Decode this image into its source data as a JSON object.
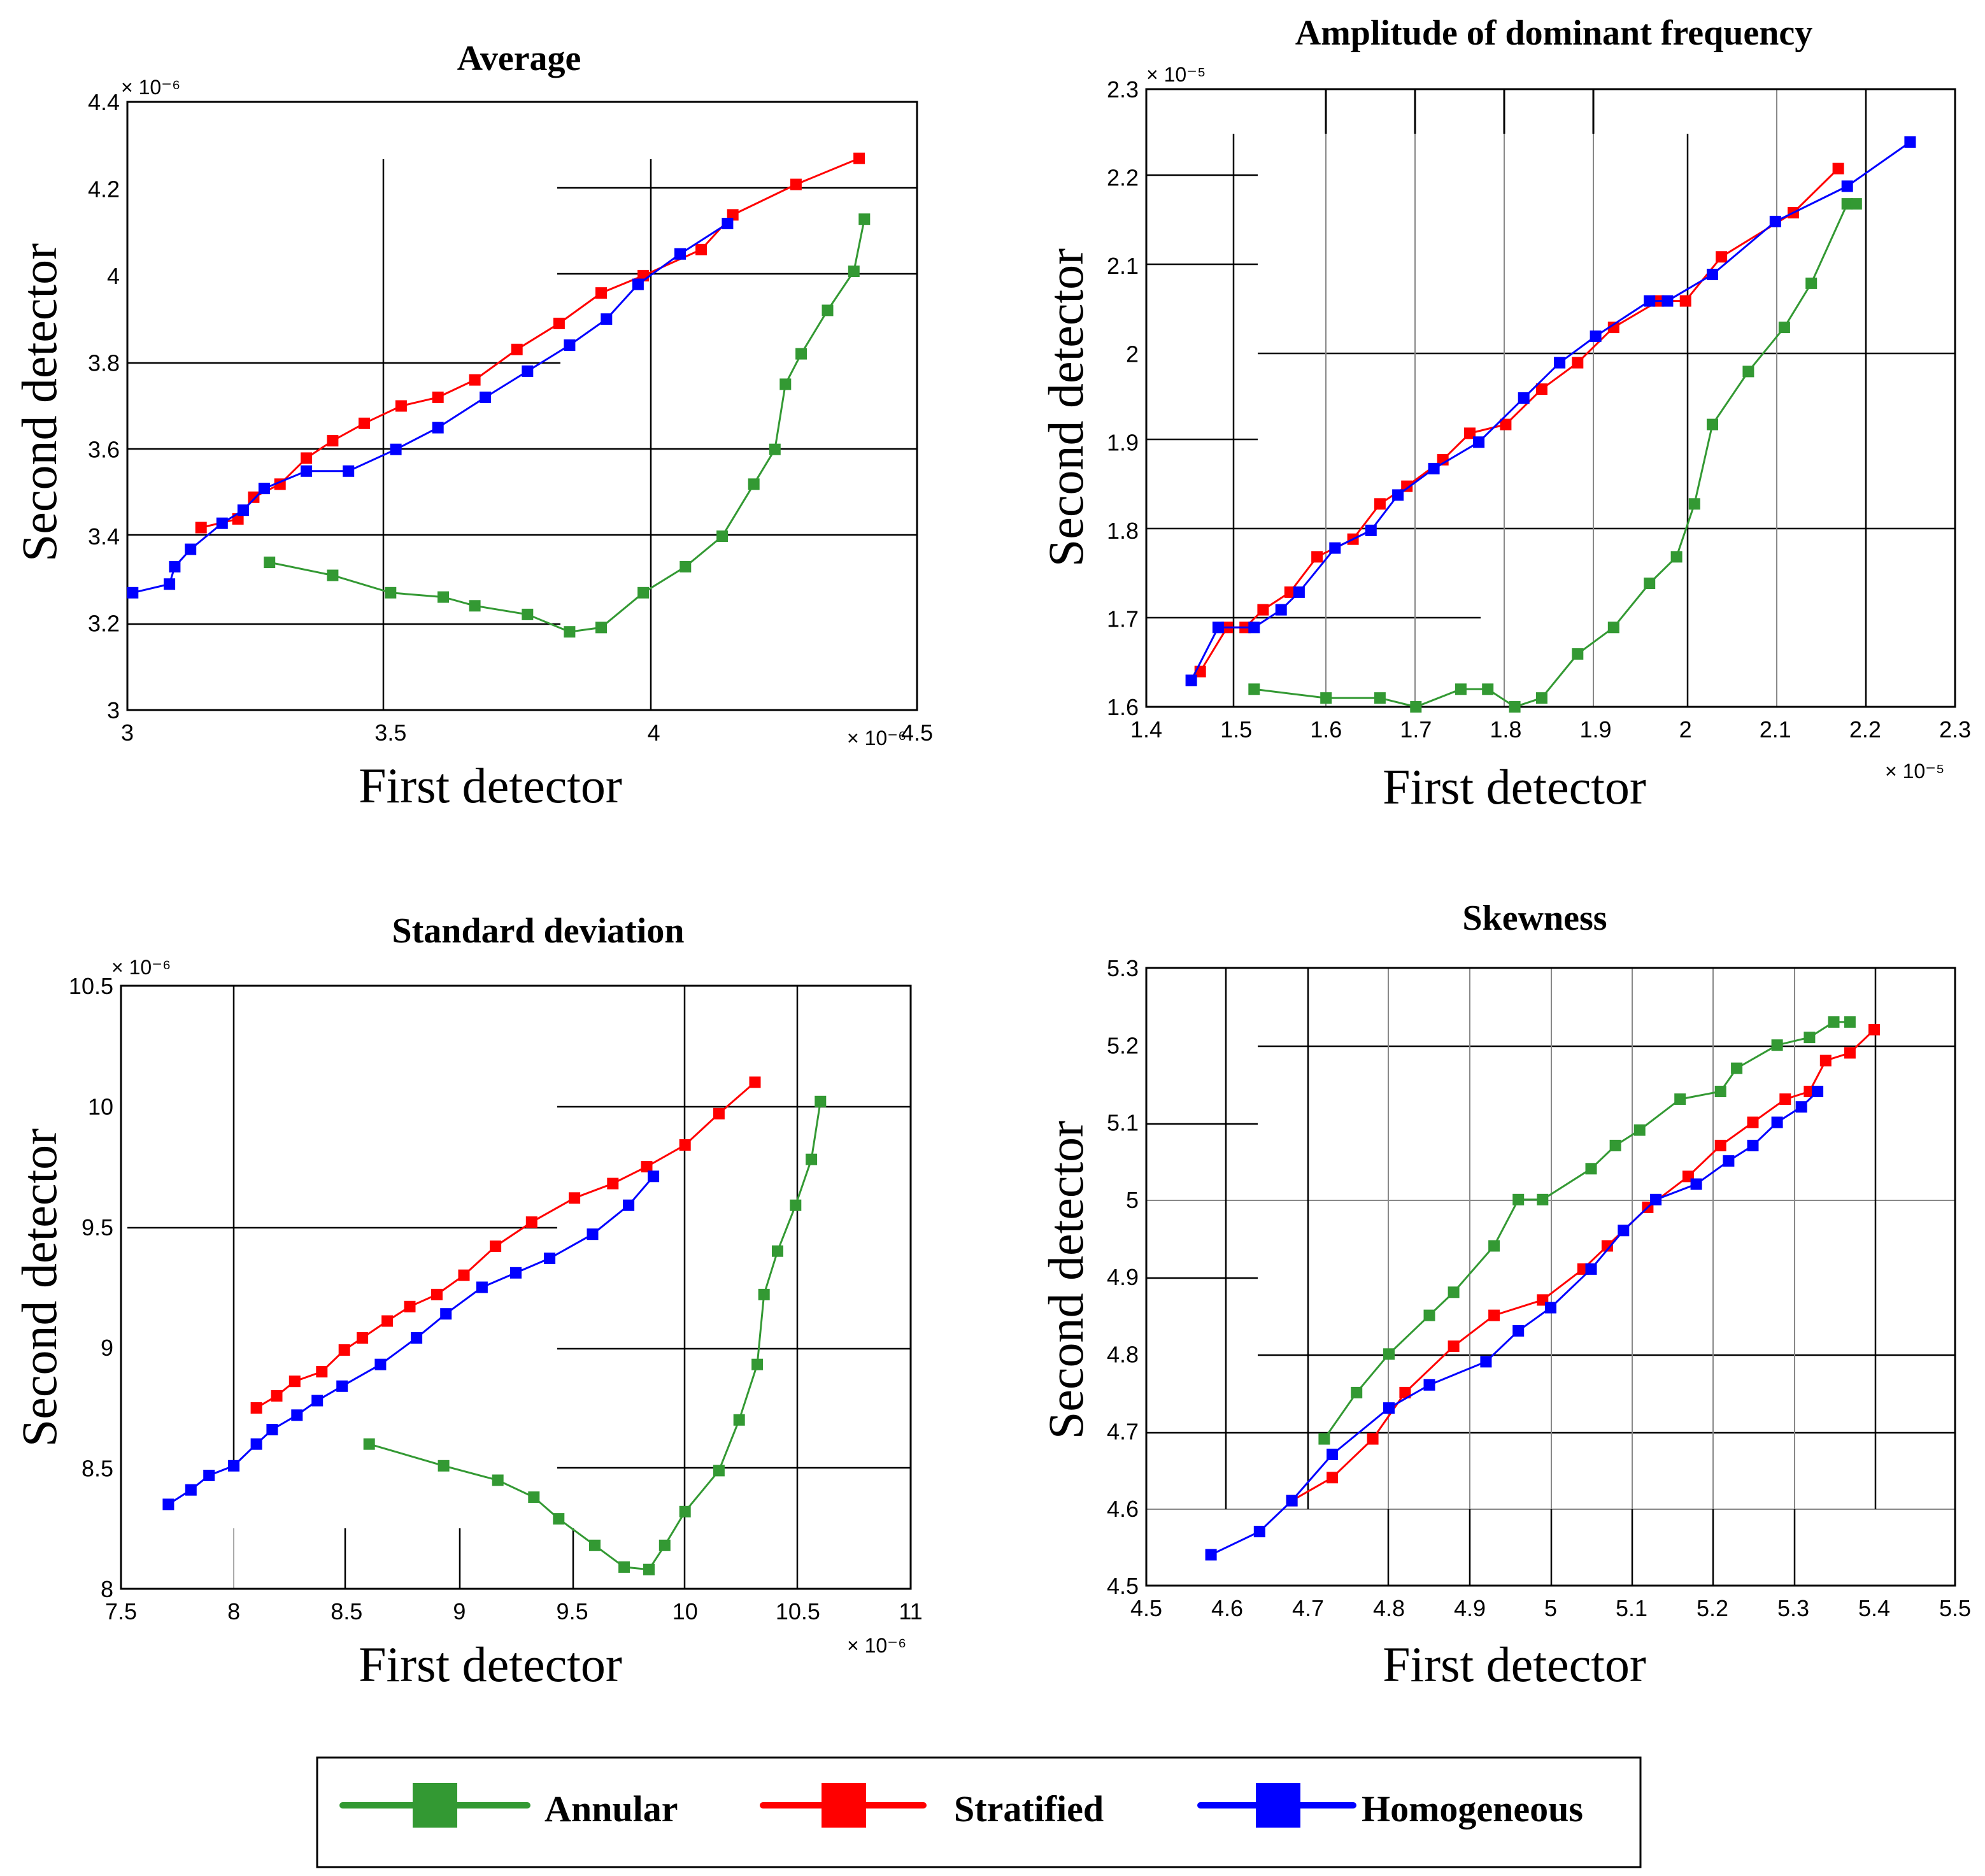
{
  "colors": {
    "Annular": "#339933",
    "Stratified": "#ff0000",
    "Homogeneous": "#0000ff"
  },
  "legend": {
    "items": [
      {
        "name": "Annular",
        "color": "#339933"
      },
      {
        "name": "Stratified",
        "color": "#ff0000"
      },
      {
        "name": "Homogeneous",
        "color": "#0000ff"
      }
    ]
  },
  "chart_data": [
    {
      "type": "line",
      "title": "Average",
      "xlabel": "First detector",
      "ylabel": "Second detector",
      "xlim": [
        3,
        4.5
      ],
      "ylim": [
        3,
        4.4
      ],
      "xticks": [
        "3",
        "3.5",
        "4",
        "4.5"
      ],
      "yticks": [
        "3",
        "3.2",
        "3.4",
        "3.6",
        "3.8",
        "4",
        "4.2",
        "4.4"
      ],
      "xexponent": "× 10⁻⁶",
      "yexponent": "× 10⁻⁶",
      "series": [
        {
          "name": "Annular",
          "x": [
            3.27,
            3.39,
            3.5,
            3.6,
            3.66,
            3.76,
            3.84,
            3.9,
            3.98,
            4.06,
            4.13,
            4.19,
            4.23,
            4.25,
            4.28,
            4.33,
            4.38,
            4.4
          ],
          "y": [
            3.34,
            3.31,
            3.27,
            3.26,
            3.24,
            3.22,
            3.18,
            3.19,
            3.27,
            3.33,
            3.4,
            3.52,
            3.6,
            3.75,
            3.82,
            3.92,
            4.01,
            4.13
          ]
        },
        {
          "name": "Stratified",
          "x": [
            3.14,
            3.21,
            3.24,
            3.29,
            3.34,
            3.39,
            3.45,
            3.52,
            3.59,
            3.66,
            3.74,
            3.82,
            3.9,
            3.98,
            4.09,
            4.15,
            4.27,
            4.39
          ],
          "y": [
            3.42,
            3.44,
            3.49,
            3.52,
            3.58,
            3.62,
            3.66,
            3.7,
            3.72,
            3.76,
            3.83,
            3.89,
            3.96,
            4.0,
            4.06,
            4.14,
            4.21,
            4.27
          ]
        },
        {
          "name": "Homogeneous",
          "x": [
            3.01,
            3.08,
            3.09,
            3.12,
            3.18,
            3.22,
            3.26,
            3.34,
            3.42,
            3.51,
            3.59,
            3.68,
            3.76,
            3.84,
            3.91,
            3.97,
            4.05,
            4.14
          ],
          "y": [
            3.27,
            3.29,
            3.33,
            3.37,
            3.43,
            3.46,
            3.51,
            3.55,
            3.55,
            3.6,
            3.65,
            3.72,
            3.78,
            3.84,
            3.9,
            3.98,
            4.05,
            4.12
          ]
        }
      ]
    },
    {
      "type": "line",
      "title": "Amplitude of dominant frequency",
      "xlabel": "First detector",
      "ylabel": "Second detector",
      "xlim": [
        1.4,
        2.3
      ],
      "ylim": [
        1.6,
        2.3
      ],
      "xticks": [
        "1.4",
        "1.5",
        "1.6",
        "1.7",
        "1.8",
        "1.9",
        "2",
        "2.1",
        "2.2",
        "2.3"
      ],
      "yticks": [
        "1.6",
        "1.7",
        "1.8",
        "1.9",
        "2",
        "2.1",
        "2.2",
        "2.3"
      ],
      "xexponent": "× 10⁻⁵",
      "yexponent": "× 10⁻⁵",
      "series": [
        {
          "name": "Annular",
          "x": [
            1.52,
            1.6,
            1.66,
            1.7,
            1.75,
            1.78,
            1.81,
            1.84,
            1.88,
            1.92,
            1.96,
            1.99,
            2.01,
            2.03,
            2.07,
            2.11,
            2.14,
            2.18,
            2.19
          ],
          "y": [
            1.62,
            1.61,
            1.61,
            1.6,
            1.62,
            1.62,
            1.6,
            1.61,
            1.66,
            1.69,
            1.74,
            1.77,
            1.83,
            1.92,
            1.98,
            2.03,
            2.08,
            2.17,
            2.17
          ]
        },
        {
          "name": "Stratified",
          "x": [
            1.46,
            1.49,
            1.51,
            1.53,
            1.56,
            1.59,
            1.63,
            1.66,
            1.69,
            1.73,
            1.76,
            1.8,
            1.84,
            1.88,
            1.92,
            1.97,
            2.0,
            2.04,
            2.12,
            2.17
          ],
          "y": [
            1.64,
            1.69,
            1.69,
            1.71,
            1.73,
            1.77,
            1.79,
            1.83,
            1.85,
            1.88,
            1.91,
            1.92,
            1.96,
            1.99,
            2.03,
            2.06,
            2.06,
            2.11,
            2.16,
            2.21
          ]
        },
        {
          "name": "Homogeneous",
          "x": [
            1.45,
            1.48,
            1.52,
            1.55,
            1.57,
            1.61,
            1.65,
            1.68,
            1.72,
            1.77,
            1.82,
            1.86,
            1.9,
            1.96,
            1.98,
            2.03,
            2.1,
            2.18,
            2.25
          ],
          "y": [
            1.63,
            1.69,
            1.69,
            1.71,
            1.73,
            1.78,
            1.8,
            1.84,
            1.87,
            1.9,
            1.95,
            1.99,
            2.02,
            2.06,
            2.06,
            2.09,
            2.15,
            2.19,
            2.24
          ]
        }
      ]
    },
    {
      "type": "line",
      "title": "Standard deviation",
      "xlabel": "First detector",
      "ylabel": "Second detector",
      "xlim": [
        7.5,
        11
      ],
      "ylim": [
        8,
        10.5
      ],
      "xticks": [
        "7.5",
        "8",
        "8.5",
        "9",
        "9.5",
        "10",
        "10.5",
        "11"
      ],
      "yticks": [
        "8",
        "8.5",
        "9",
        "9.5",
        "10",
        "10.5"
      ],
      "xexponent": "× 10⁻⁶",
      "yexponent": "× 10⁻⁶",
      "series": [
        {
          "name": "Annular",
          "x": [
            8.6,
            8.93,
            9.17,
            9.33,
            9.44,
            9.6,
            9.73,
            9.84,
            9.91,
            10.0,
            10.15,
            10.24,
            10.32,
            10.35,
            10.41,
            10.49,
            10.56,
            10.6
          ],
          "y": [
            8.6,
            8.51,
            8.45,
            8.38,
            8.29,
            8.18,
            8.09,
            8.08,
            8.18,
            8.32,
            8.49,
            8.7,
            8.93,
            9.22,
            9.4,
            9.59,
            9.78,
            10.02
          ]
        },
        {
          "name": "Stratified",
          "x": [
            8.1,
            8.19,
            8.27,
            8.39,
            8.49,
            8.57,
            8.68,
            8.78,
            8.9,
            9.02,
            9.16,
            9.32,
            9.51,
            9.68,
            9.83,
            10.0,
            10.15,
            10.31
          ],
          "y": [
            8.75,
            8.8,
            8.86,
            8.9,
            8.99,
            9.04,
            9.11,
            9.17,
            9.22,
            9.3,
            9.42,
            9.52,
            9.62,
            9.68,
            9.75,
            9.84,
            9.97,
            10.1
          ]
        },
        {
          "name": "Homogeneous",
          "x": [
            7.71,
            7.81,
            7.89,
            8.0,
            8.1,
            8.17,
            8.28,
            8.37,
            8.48,
            8.65,
            8.81,
            8.94,
            9.1,
            9.25,
            9.4,
            9.59,
            9.75,
            9.86
          ],
          "y": [
            8.35,
            8.41,
            8.47,
            8.51,
            8.6,
            8.66,
            8.72,
            8.78,
            8.84,
            8.93,
            9.04,
            9.14,
            9.25,
            9.31,
            9.37,
            9.47,
            9.59,
            9.71
          ]
        }
      ]
    },
    {
      "type": "line",
      "title": "Skewness",
      "xlabel": "First detector",
      "ylabel": "Second detector",
      "xlim": [
        4.5,
        5.5
      ],
      "ylim": [
        4.5,
        5.3
      ],
      "xticks": [
        "4.5",
        "4.6",
        "4.7",
        "4.8",
        "4.9",
        "5",
        "5.1",
        "5.2",
        "5.3",
        "5.4",
        "5.5"
      ],
      "yticks": [
        "4.5",
        "4.6",
        "4.7",
        "4.8",
        "4.9",
        "5",
        "5.1",
        "5.2",
        "5.3"
      ],
      "xexponent": "",
      "yexponent": "",
      "series": [
        {
          "name": "Annular",
          "x": [
            4.72,
            4.76,
            4.8,
            4.85,
            4.88,
            4.93,
            4.96,
            4.99,
            5.05,
            5.08,
            5.11,
            5.16,
            5.21,
            5.23,
            5.28,
            5.32,
            5.35,
            5.37
          ],
          "y": [
            4.69,
            4.75,
            4.8,
            4.85,
            4.88,
            4.94,
            5.0,
            5.0,
            5.04,
            5.07,
            5.09,
            5.13,
            5.14,
            5.17,
            5.2,
            5.21,
            5.23,
            5.23
          ]
        },
        {
          "name": "Stratified",
          "x": [
            4.68,
            4.73,
            4.78,
            4.82,
            4.88,
            4.93,
            4.99,
            5.04,
            5.07,
            5.12,
            5.17,
            5.21,
            5.25,
            5.29,
            5.32,
            5.34,
            5.37,
            5.4
          ],
          "y": [
            4.61,
            4.64,
            4.69,
            4.75,
            4.81,
            4.85,
            4.87,
            4.91,
            4.94,
            4.99,
            5.03,
            5.07,
            5.1,
            5.13,
            5.14,
            5.18,
            5.19,
            5.22
          ]
        },
        {
          "name": "Homogeneous",
          "x": [
            4.58,
            4.64,
            4.68,
            4.73,
            4.8,
            4.85,
            4.92,
            4.96,
            5.0,
            5.05,
            5.09,
            5.13,
            5.18,
            5.22,
            5.25,
            5.28,
            5.31,
            5.33
          ],
          "y": [
            4.54,
            4.57,
            4.61,
            4.67,
            4.73,
            4.76,
            4.79,
            4.83,
            4.86,
            4.91,
            4.96,
            5.0,
            5.02,
            5.05,
            5.07,
            5.1,
            5.12,
            5.14
          ]
        }
      ]
    }
  ]
}
